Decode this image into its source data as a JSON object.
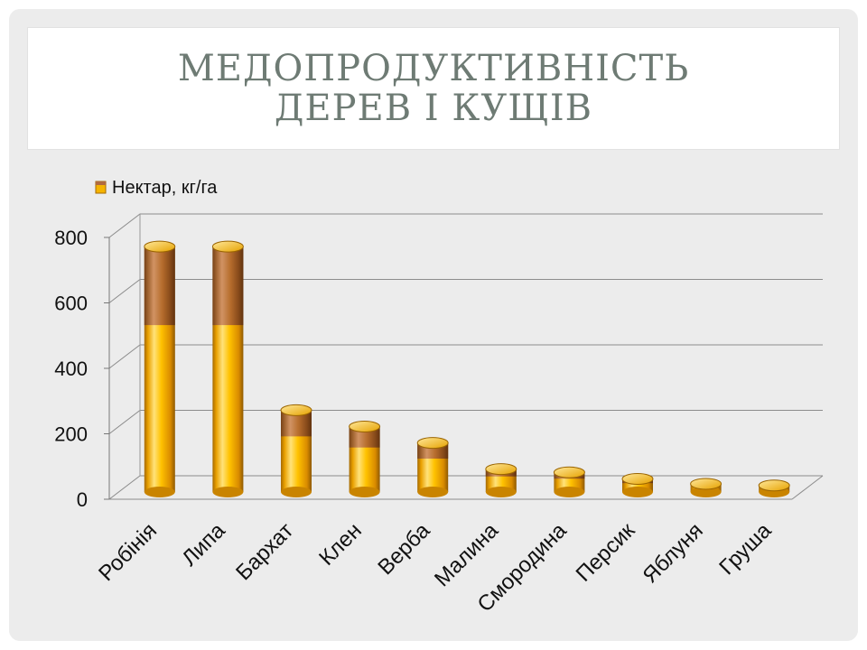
{
  "title": {
    "line1": "МЕДОПРОДУКТИВНІСТЬ",
    "line2": "ДЕРЕВ І КУЩІВ"
  },
  "chart_data": {
    "type": "bar",
    "categories": [
      "Робінія",
      "Липа",
      "Бархат",
      "Клен",
      "Верба",
      "Малина",
      "Смородина",
      "Персик",
      "Яблуня",
      "Груша"
    ],
    "series": [
      {
        "name": "Нектар, кг/га",
        "values": [
          750,
          750,
          250,
          200,
          150,
          70,
          60,
          40,
          25,
          20
        ],
        "color": "#f5b400"
      }
    ],
    "ylim": [
      0,
      800
    ],
    "yticks": [
      0,
      200,
      400,
      600,
      800
    ],
    "grid": true,
    "legend": "top-left",
    "three_d": true
  },
  "colors": {
    "slide_bg": "#ececec",
    "title_text": "#6e7b74",
    "bar_gold": "#f5b400",
    "bar_copper": "#b06a40"
  }
}
